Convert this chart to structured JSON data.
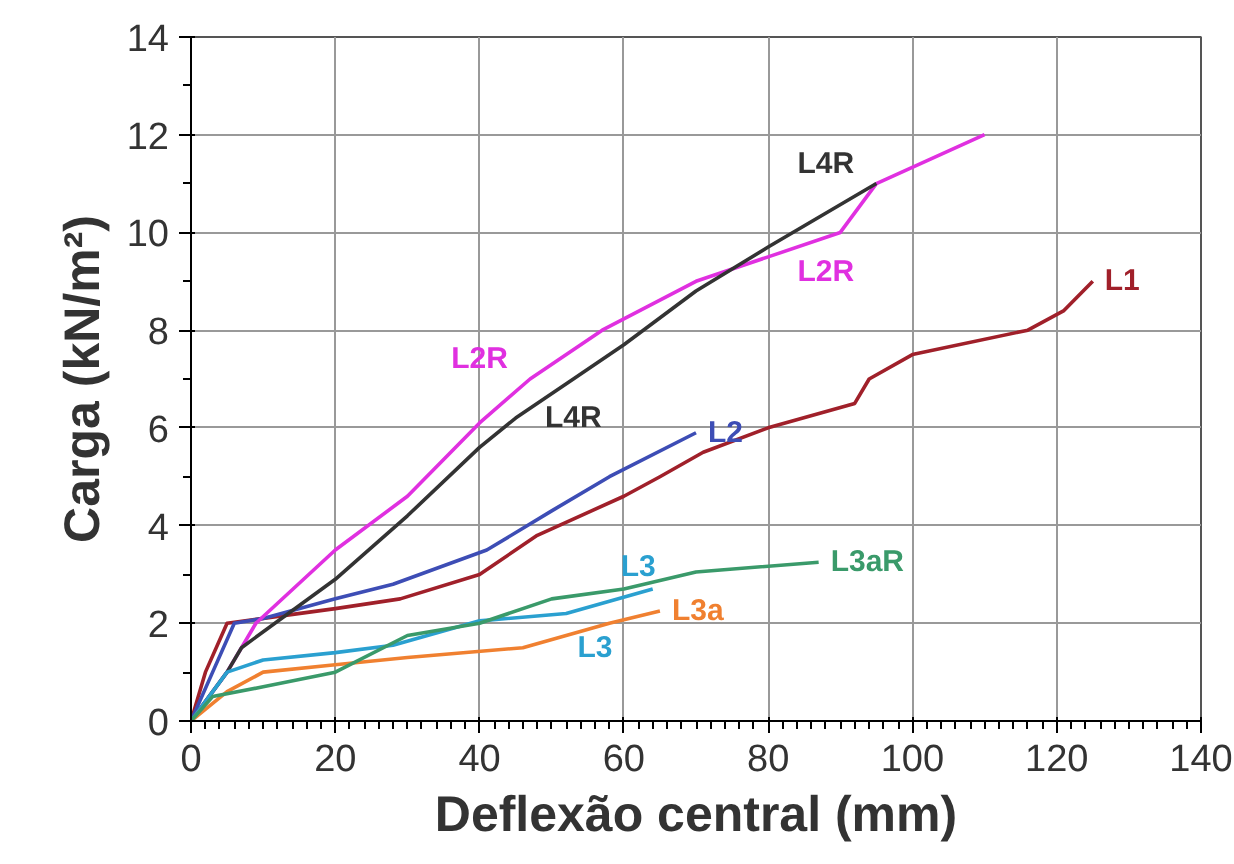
{
  "chart_data": {
    "type": "line",
    "xlabel": "Deflexão central (mm)",
    "ylabel": "Carga (kN/m²)",
    "xlim": [
      0,
      140
    ],
    "ylim": [
      0,
      14
    ],
    "xticks": [
      0,
      20,
      40,
      60,
      80,
      100,
      120,
      140
    ],
    "yticks": [
      0,
      2,
      4,
      6,
      8,
      10,
      12,
      14
    ],
    "grid": true,
    "marker": "none",
    "line_style": "solid",
    "series": [
      {
        "name": "L1",
        "color": "#a0202a",
        "x": [
          0,
          2,
          5,
          10,
          20,
          29,
          40,
          48,
          60,
          65,
          71,
          80,
          92,
          94,
          100,
          116,
          121,
          125
        ],
        "values": [
          0,
          1,
          2,
          2.1,
          2.3,
          2.5,
          3,
          3.8,
          4.6,
          5,
          5.5,
          6,
          6.5,
          7,
          7.5,
          8,
          8.4,
          9
        ]
      },
      {
        "name": "L2",
        "color": "#3d4db5",
        "x": [
          0,
          3,
          6,
          10,
          20,
          28,
          41,
          50,
          58,
          70
        ],
        "values": [
          0,
          1,
          2,
          2.1,
          2.5,
          2.8,
          3.5,
          4.3,
          5,
          5.9
        ]
      },
      {
        "name": "L2R",
        "color": "#e030e0",
        "x": [
          0,
          5,
          9,
          20,
          30,
          40,
          47,
          57,
          70,
          80,
          90,
          95,
          110
        ],
        "values": [
          0,
          1,
          2,
          3.5,
          4.6,
          6.1,
          7,
          8,
          9,
          9.5,
          10,
          11,
          12
        ]
      },
      {
        "name": "L4R",
        "color": "#333333",
        "x": [
          0,
          5,
          7,
          20,
          30,
          40,
          45,
          53,
          60,
          70,
          80,
          95
        ],
        "values": [
          0,
          1,
          1.5,
          2.9,
          4.2,
          5.6,
          6.2,
          7,
          7.7,
          8.8,
          9.7,
          11
        ]
      },
      {
        "name": "L3",
        "color": "#2aa0d0",
        "x": [
          0,
          5,
          10,
          20,
          28,
          40,
          52,
          64
        ],
        "values": [
          0,
          1,
          1.25,
          1.4,
          1.55,
          2.05,
          2.2,
          2.7
        ]
      },
      {
        "name": "L3a",
        "color": "#f08030",
        "x": [
          0,
          5,
          10,
          20,
          30,
          46,
          58,
          65
        ],
        "values": [
          0,
          0.6,
          1,
          1.15,
          1.3,
          1.5,
          2,
          2.25
        ]
      },
      {
        "name": "L3aR",
        "color": "#3a9a6a",
        "x": [
          0,
          3,
          10,
          20,
          30,
          40,
          50,
          60,
          70,
          87
        ],
        "values": [
          0,
          0.5,
          0.7,
          1,
          1.75,
          2,
          2.5,
          2.7,
          3.05,
          3.25
        ]
      }
    ],
    "annotations": [
      "L4R",
      "L2R",
      "L3"
    ]
  }
}
